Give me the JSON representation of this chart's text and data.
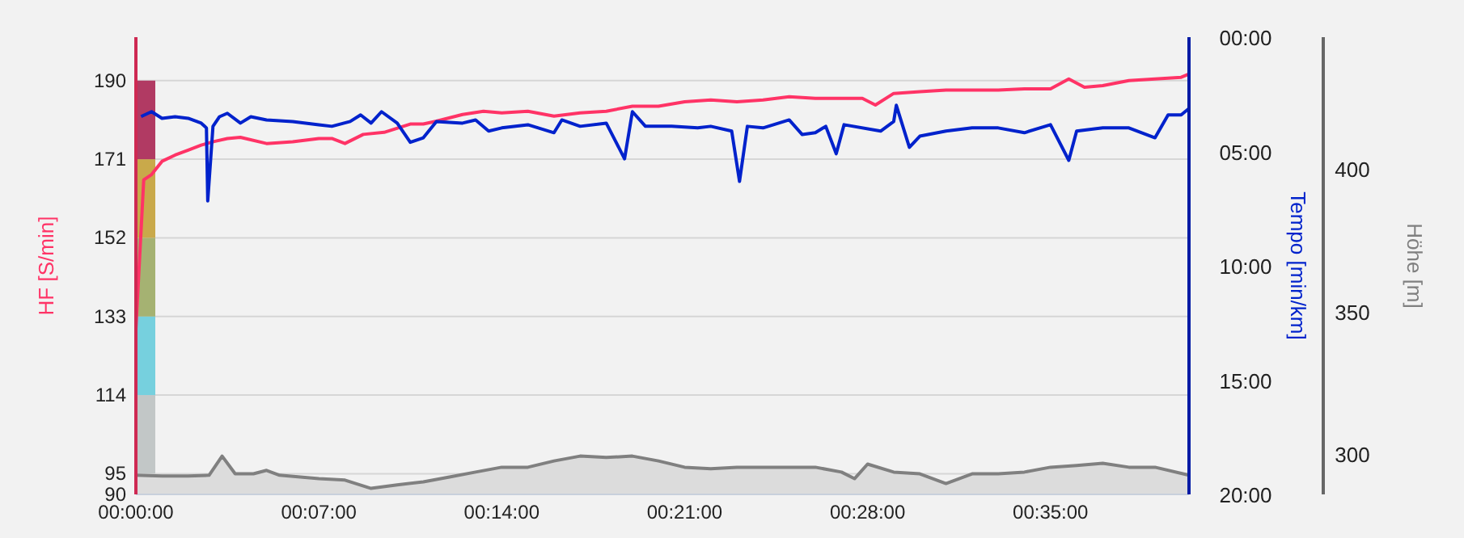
{
  "chart_data": {
    "type": "line",
    "ylabel": "HF [S/min]",
    "y2label": "Tempo [min/km]",
    "y3label": "Höhe [m]",
    "xlim": [
      0,
      40.3
    ],
    "xticks": [
      {
        "value": 0,
        "label": "00:00:00"
      },
      {
        "value": 7,
        "label": "00:07:00"
      },
      {
        "value": 14,
        "label": "00:14:00"
      },
      {
        "value": 21,
        "label": "00:21:00"
      },
      {
        "value": 28,
        "label": "00:28:00"
      },
      {
        "value": 35,
        "label": "00:35:00"
      }
    ],
    "ylim": [
      90,
      200.5
    ],
    "yticks": [
      90,
      95,
      114,
      133,
      152,
      171,
      190
    ],
    "y2lim": [
      20,
      0
    ],
    "y2ticks": [
      {
        "value": 0,
        "label": "00:00"
      },
      {
        "value": 5,
        "label": "05:00"
      },
      {
        "value": 10,
        "label": "10:00"
      },
      {
        "value": 15,
        "label": "15:00"
      },
      {
        "value": 20,
        "label": "20:00"
      }
    ],
    "y3lim": [
      286,
      446
    ],
    "y3ticks": [
      300,
      350,
      400
    ],
    "grid": "y",
    "marker": "none",
    "line_style": "solid",
    "series": [
      {
        "type": "area",
        "axis": "y3",
        "color": "#808080",
        "x": [
          0,
          1,
          2,
          2.8,
          3.3,
          3.8,
          4.5,
          5,
          5.5,
          7,
          8,
          9,
          10,
          11,
          12,
          13,
          14,
          15,
          16,
          17,
          18,
          19,
          20,
          21,
          22,
          23,
          24,
          25,
          26,
          27,
          27.5,
          28,
          29,
          30,
          31,
          32,
          33,
          34,
          35,
          36,
          37,
          38,
          39,
          40.3
        ],
        "values": [
          292.7,
          292.4,
          292.4,
          292.7,
          299.4,
          293.2,
          293.2,
          294.4,
          292.7,
          291.5,
          291,
          288.1,
          289.3,
          290.4,
          292.1,
          293.8,
          295.5,
          295.5,
          297.7,
          299.4,
          298.9,
          299.4,
          297.7,
          295.5,
          295,
          295.5,
          295.5,
          295.5,
          295.5,
          293.8,
          291.5,
          296.6,
          293.8,
          293.2,
          289.8,
          293.2,
          293.2,
          293.8,
          295.5,
          296.1,
          296.9,
          295.5,
          295.5,
          292.7
        ]
      },
      {
        "axis": "y",
        "color": "#ff3366",
        "x": [
          0,
          0.3,
          0.6,
          1,
          1.5,
          2,
          2.5,
          3,
          3.5,
          4,
          5,
          6,
          7,
          7.5,
          8,
          8.7,
          9.5,
          10.5,
          11,
          11.5,
          12.5,
          13.3,
          14,
          15,
          16,
          17,
          18,
          19,
          20,
          21,
          22,
          23,
          24,
          25,
          26,
          27,
          27.8,
          28.3,
          29,
          30,
          31,
          32,
          33,
          34,
          35,
          35.7,
          36.3,
          37,
          38,
          39,
          40,
          40.3
        ],
        "values": [
          130,
          166,
          167.3,
          170.5,
          172,
          173.2,
          174.4,
          175.3,
          176,
          176.3,
          174.8,
          175.2,
          176,
          176,
          174.8,
          177,
          177.5,
          179.5,
          179.5,
          180.2,
          181.8,
          182.6,
          182.2,
          182.6,
          181.4,
          182.2,
          182.6,
          183.8,
          183.8,
          184.9,
          185.3,
          184.9,
          185.3,
          186.1,
          185.7,
          185.7,
          185.7,
          184.1,
          186.9,
          187.3,
          187.7,
          187.7,
          187.7,
          188,
          188,
          190.4,
          188.4,
          188.8,
          190,
          190.4,
          190.8,
          191.6
        ]
      },
      {
        "axis": "y2",
        "color": "#0022cc",
        "x": [
          0.2,
          0.6,
          1,
          1.5,
          2,
          2.5,
          2.7,
          2.75,
          2.95,
          3.2,
          3.5,
          4,
          4.4,
          5,
          6,
          7,
          7.5,
          8.2,
          8.6,
          9,
          9.4,
          10,
          10.5,
          11,
          11.5,
          12.5,
          13,
          13.5,
          14,
          15,
          16,
          16.3,
          17,
          18,
          18.7,
          19,
          19.5,
          20.5,
          21.5,
          22,
          22.8,
          23.1,
          23.4,
          24,
          25,
          25.5,
          26,
          26.4,
          26.8,
          27.1,
          28.5,
          29,
          29.1,
          29.6,
          30,
          31,
          32,
          33,
          34,
          35,
          35.7,
          36,
          37,
          38,
          39,
          39.5,
          40,
          40.3
        ],
        "values": [
          3.47,
          3.26,
          3.55,
          3.48,
          3.55,
          3.76,
          3.97,
          7.16,
          3.9,
          3.48,
          3.33,
          3.76,
          3.48,
          3.62,
          3.69,
          3.83,
          3.9,
          3.69,
          3.4,
          3.76,
          3.26,
          3.76,
          4.6,
          4.4,
          3.69,
          3.76,
          3.62,
          4.11,
          3.97,
          3.83,
          4.18,
          3.62,
          3.9,
          3.76,
          5.32,
          3.26,
          3.9,
          3.9,
          3.97,
          3.9,
          4.11,
          6.31,
          3.9,
          3.97,
          3.62,
          4.26,
          4.18,
          3.9,
          5.1,
          3.83,
          4.11,
          3.69,
          2.98,
          4.82,
          4.33,
          4.11,
          3.97,
          3.97,
          4.18,
          3.83,
          5.39,
          4.11,
          3.97,
          3.97,
          4.4,
          3.4,
          3.4,
          3.12
        ]
      }
    ]
  }
}
